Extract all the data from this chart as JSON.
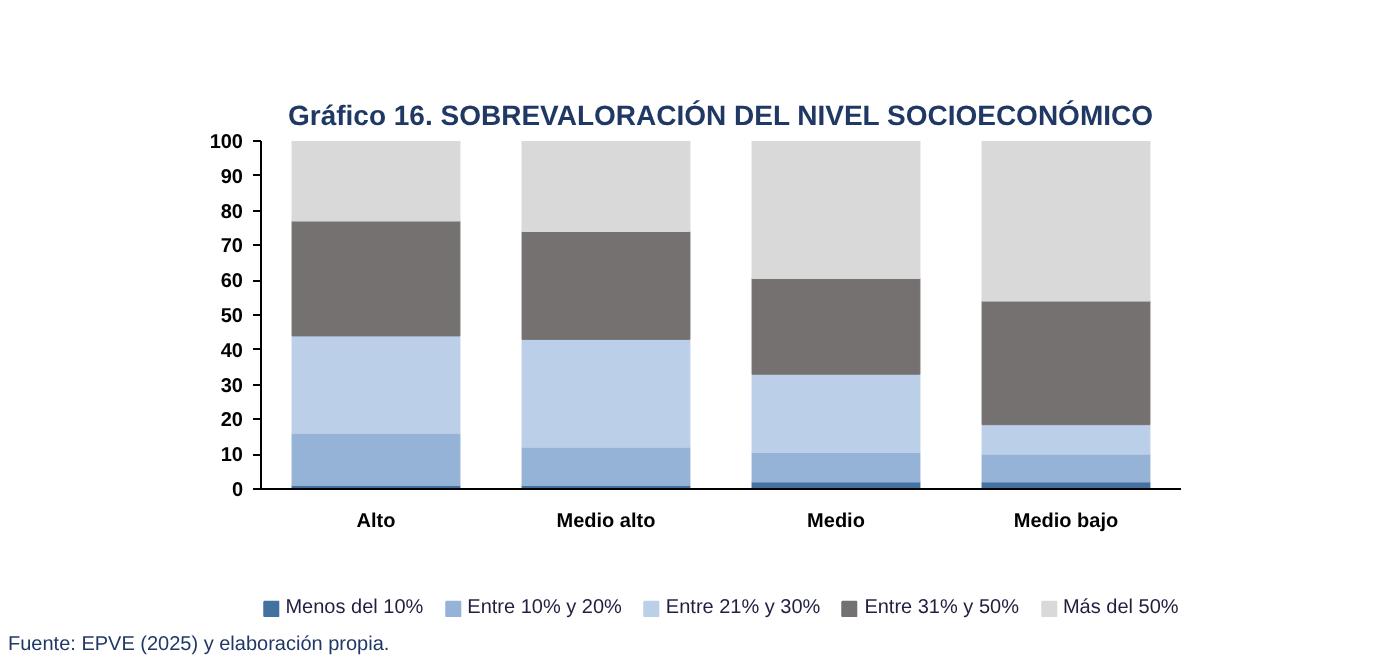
{
  "chart_data": {
    "type": "bar",
    "stacked": true,
    "title": "Gráfico 16. SOBREVALORACIÓN DEL NIVEL SOCIOECONÓMICO",
    "categories": [
      "Alto",
      "Medio alto",
      "Medio",
      "Medio bajo"
    ],
    "series": [
      {
        "name": "Menos del 10%",
        "color": "#44719f",
        "values": [
          1,
          1,
          2,
          2
        ]
      },
      {
        "name": "Entre 10% y 20%",
        "color": "#95b3d7",
        "values": [
          15,
          11,
          8.5,
          8
        ]
      },
      {
        "name": "Entre 21% y 30%",
        "color": "#bccfe8",
        "values": [
          28,
          31,
          22.5,
          8.5
        ]
      },
      {
        "name": "Entre 31% y 50%",
        "color": "#767171",
        "values": [
          33,
          31,
          27.5,
          35.5
        ]
      },
      {
        "name": "Más del 50%",
        "color": "#d9d9d9",
        "values": [
          23,
          26,
          39.5,
          46
        ]
      }
    ],
    "ylim": [
      0,
      100
    ],
    "yticks": [
      0,
      10,
      20,
      30,
      40,
      50,
      60,
      70,
      80,
      90,
      100
    ],
    "grid": false,
    "legend": "bottom",
    "annotations": [
      "Fuente: EPVE (2025) y elaboración propia."
    ]
  }
}
